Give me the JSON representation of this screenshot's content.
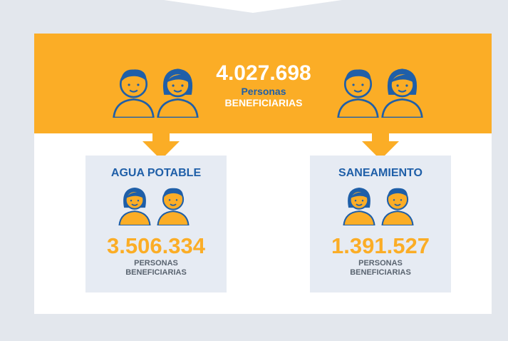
{
  "header": {
    "total": "4.027.698",
    "line1": "Personas",
    "line2": "BENEFICIARIAS"
  },
  "cards": [
    {
      "title": "AGUA POTABLE",
      "value": "3.506.334",
      "label1": "PERSONAS",
      "label2": "BENEFICIARIAS"
    },
    {
      "title": "SANEAMIENTO",
      "value": "1.391.527",
      "label1": "PERSONAS",
      "label2": "BENEFICIARIAS"
    }
  ]
}
